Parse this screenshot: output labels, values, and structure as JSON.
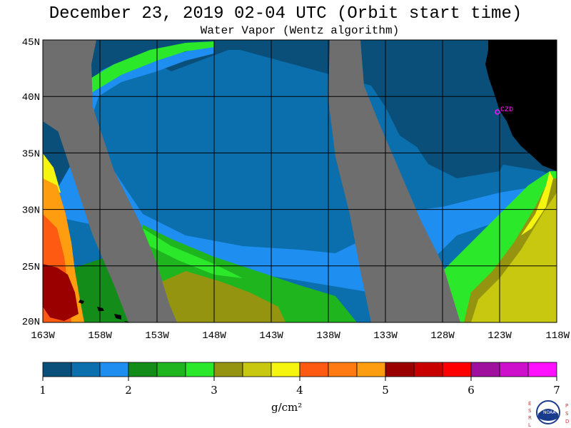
{
  "title": "December 23, 2019  02-04 UTC  (Orbit start time)",
  "subtitle": "Water Vapor (Wentz algorithm)",
  "station_label": "CZD",
  "map": {
    "lat_labels": [
      "45N",
      "40N",
      "35N",
      "30N",
      "25N",
      "20N"
    ],
    "lon_labels": [
      "163W",
      "158W",
      "153W",
      "148W",
      "143W",
      "138W",
      "133W",
      "128W",
      "123W",
      "118W"
    ]
  },
  "colorbar": {
    "tick_labels": [
      "1",
      "2",
      "3",
      "4",
      "5",
      "6",
      "7"
    ],
    "units": "g/cm²",
    "colors": [
      "#0a4f7a",
      "#0b6fae",
      "#1e8ef0",
      "#138c1a",
      "#1fb51f",
      "#2be82b",
      "#949411",
      "#c8c810",
      "#f5f510",
      "#ff5a12",
      "#ff7a12",
      "#ff9d10",
      "#9a0000",
      "#c80000",
      "#ff0000",
      "#a0109e",
      "#cc10cc",
      "#ff10ff"
    ]
  },
  "logo_letters": {
    "left": "ESRL",
    "right": "PSD",
    "center": "NOAA"
  },
  "colors": {
    "land": "#000000",
    "no_data": "#6e6e6e",
    "grid": "#000000",
    "station": "#ff10ff"
  }
}
